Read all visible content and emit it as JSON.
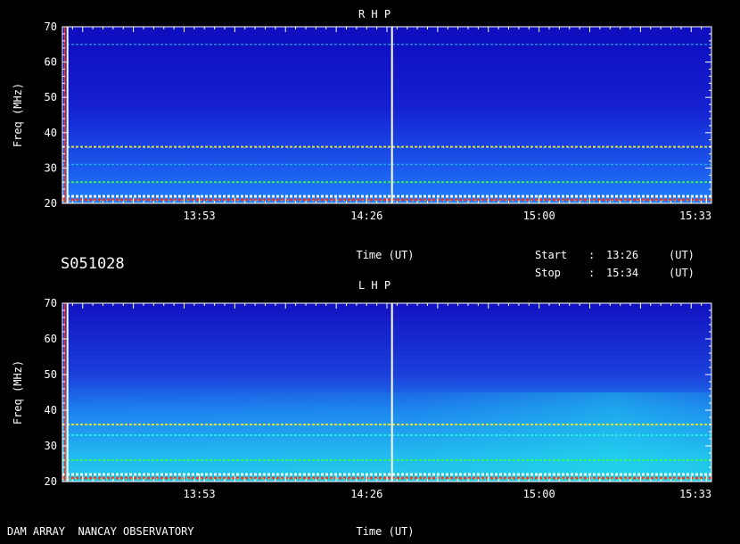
{
  "header": {
    "id_label": "S051028",
    "start_label": "Start",
    "start_sep": ":",
    "start_time": "13:26",
    "start_unit": "(UT)",
    "stop_label": "Stop",
    "stop_sep": ":",
    "stop_time": "15:34",
    "stop_unit": "(UT)"
  },
  "footer": {
    "credit": "DAM ARRAY  NANCAY OBSERVATORY"
  },
  "colors": {
    "background": "#000000",
    "text": "#ffffff",
    "spectrum_low": "#1414c8",
    "spectrum_mid": "#1ea0ff",
    "spectrum_high": "#28f0e6",
    "burst_green": "#32ff50",
    "burst_red": "#ff3214"
  },
  "chart_data": [
    {
      "type": "heatmap",
      "title": "R H P",
      "xlabel": "Time (UT)",
      "ylabel": "Freq (MHz)",
      "x_range": [
        "13:26",
        "15:34"
      ],
      "ylim": [
        20,
        70
      ],
      "x_ticks": [
        "13:53",
        "14:26",
        "15:00",
        "15:33"
      ],
      "y_ticks": [
        20,
        30,
        40,
        50,
        60,
        70
      ],
      "vertical_lines": [
        "13:27",
        "14:31"
      ],
      "bright_bands": [
        {
          "freq": 21,
          "level": "high",
          "color": "red-yellow"
        },
        {
          "freq": 22,
          "level": "high",
          "color": "white"
        },
        {
          "freq": 26,
          "level": "medium",
          "color": "green"
        },
        {
          "freq": 31,
          "level": "low",
          "color": "cyan"
        },
        {
          "freq": 36,
          "level": "medium",
          "color": "yellow-cyan"
        },
        {
          "freq": 65,
          "level": "low",
          "color": "cyan"
        }
      ],
      "intensity_profile": "low (blue) at high frequency, increasing toward 20 MHz"
    },
    {
      "type": "heatmap",
      "title": "L H P",
      "xlabel": "Time (UT)",
      "ylabel": "Freq (MHz)",
      "x_range": [
        "13:26",
        "15:34"
      ],
      "ylim": [
        20,
        70
      ],
      "x_ticks": [
        "13:53",
        "14:26",
        "15:00",
        "15:33"
      ],
      "y_ticks": [
        20,
        30,
        40,
        50,
        60,
        70
      ],
      "vertical_lines": [
        "13:27",
        "14:31"
      ],
      "bright_bands": [
        {
          "freq": 21,
          "level": "high",
          "color": "red-yellow"
        },
        {
          "freq": 22,
          "level": "high",
          "color": "white"
        },
        {
          "freq": 26,
          "level": "medium",
          "color": "green"
        },
        {
          "freq": 33,
          "level": "medium",
          "color": "cyan"
        },
        {
          "freq": 36,
          "level": "medium",
          "color": "yellow-green"
        }
      ],
      "intensity_profile": "stronger cyan emission below 40 MHz, especially after 15:00"
    }
  ]
}
